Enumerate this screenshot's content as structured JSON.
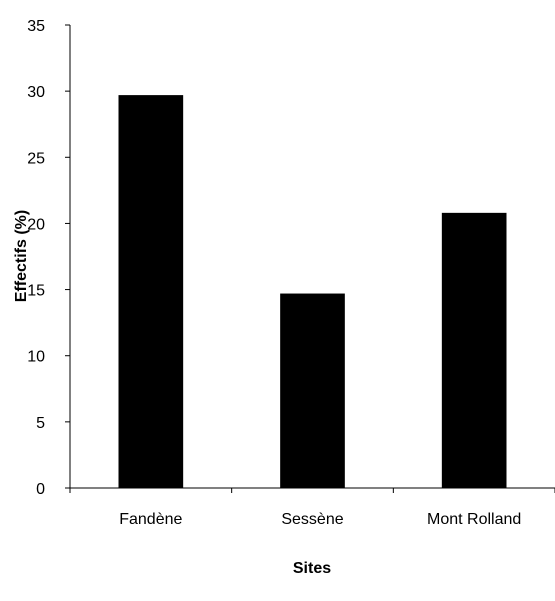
{
  "chart_data": {
    "type": "bar",
    "categories": [
      "Fandène",
      "Sessène",
      "Mont Rolland"
    ],
    "values": [
      29.7,
      14.7,
      20.8
    ],
    "xlabel": "Sites",
    "ylabel": "Effectifs (%)",
    "ylim": [
      0,
      35
    ],
    "yticks": [
      "0",
      "5",
      "10",
      "15",
      "20",
      "25",
      "30",
      "35"
    ],
    "grid": false,
    "legend": "none",
    "bar_color": "#000000"
  }
}
